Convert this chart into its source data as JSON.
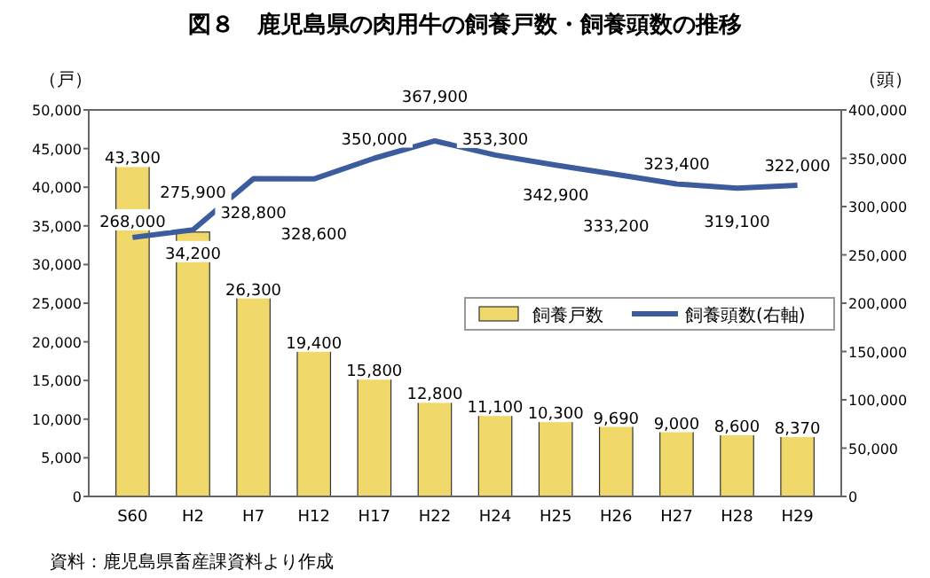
{
  "chart_data": {
    "type": "bar",
    "title": "図８　鹿児島県の肉用牛の飼養戸数・飼養頭数の推移",
    "ylabel": "（戸）",
    "y2label": "（頭）",
    "categories": [
      "S60",
      "H2",
      "H7",
      "H12",
      "H17",
      "H22",
      "H24",
      "H25",
      "H26",
      "H27",
      "H28",
      "H29"
    ],
    "series": [
      {
        "name": "飼養戸数",
        "type": "bar",
        "color": "#f0d96a",
        "values": [
          43300,
          34200,
          26300,
          19400,
          15800,
          12800,
          11100,
          10300,
          9690,
          9000,
          8600,
          8370
        ],
        "value_labels": [
          "43,300",
          "34,200",
          "26,300",
          "19,400",
          "15,800",
          "12,800",
          "11,100",
          "10,300",
          "9,690",
          "9,000",
          "8,600",
          "8,370"
        ]
      },
      {
        "name": "飼養頭数(右軸)",
        "type": "line",
        "axis": "y2",
        "color": "#3d5c9e",
        "values": [
          268000,
          275900,
          328800,
          328600,
          350000,
          367900,
          353300,
          342900,
          333200,
          323400,
          319100,
          322000
        ],
        "value_labels": [
          "268,000",
          "275,900",
          "328,800",
          "328,600",
          "350,000",
          "367,900",
          "353,300",
          "342,900",
          "333,200",
          "323,400",
          "319,100",
          "322,000"
        ]
      }
    ],
    "ylim": [
      0,
      50000
    ],
    "yticks": [
      0,
      {
        "value": 5000,
        "label": "5,000"
      },
      {
        "value": 10000,
        "label": "10,000"
      },
      {
        "value": 15000,
        "label": "15,000"
      },
      {
        "value": 20000,
        "label": "20,000"
      },
      {
        "value": 25000,
        "label": "25,000"
      },
      {
        "value": 30000,
        "label": "30,000"
      },
      {
        "value": 35000,
        "label": "35,000"
      },
      {
        "value": 40000,
        "label": "40,000"
      },
      {
        "value": 45000,
        "label": "45,000"
      },
      {
        "value": 50000,
        "label": "50,000"
      }
    ],
    "y2lim": [
      0,
      400000
    ],
    "y2ticks": [
      0,
      {
        "value": 50000,
        "label": "50,000"
      },
      {
        "value": 100000,
        "label": "100,000"
      },
      {
        "value": 150000,
        "label": "150,000"
      },
      {
        "value": 200000,
        "label": "200,000"
      },
      {
        "value": 250000,
        "label": "250,000"
      },
      {
        "value": 300000,
        "label": "300,000"
      },
      {
        "value": 350000,
        "label": "350,000"
      },
      {
        "value": 400000,
        "label": "400,000"
      }
    ],
    "legend": "right",
    "grid": false,
    "marker": "none",
    "annotations": [
      "資料：鹿児島県畜産課資料より作成"
    ]
  }
}
